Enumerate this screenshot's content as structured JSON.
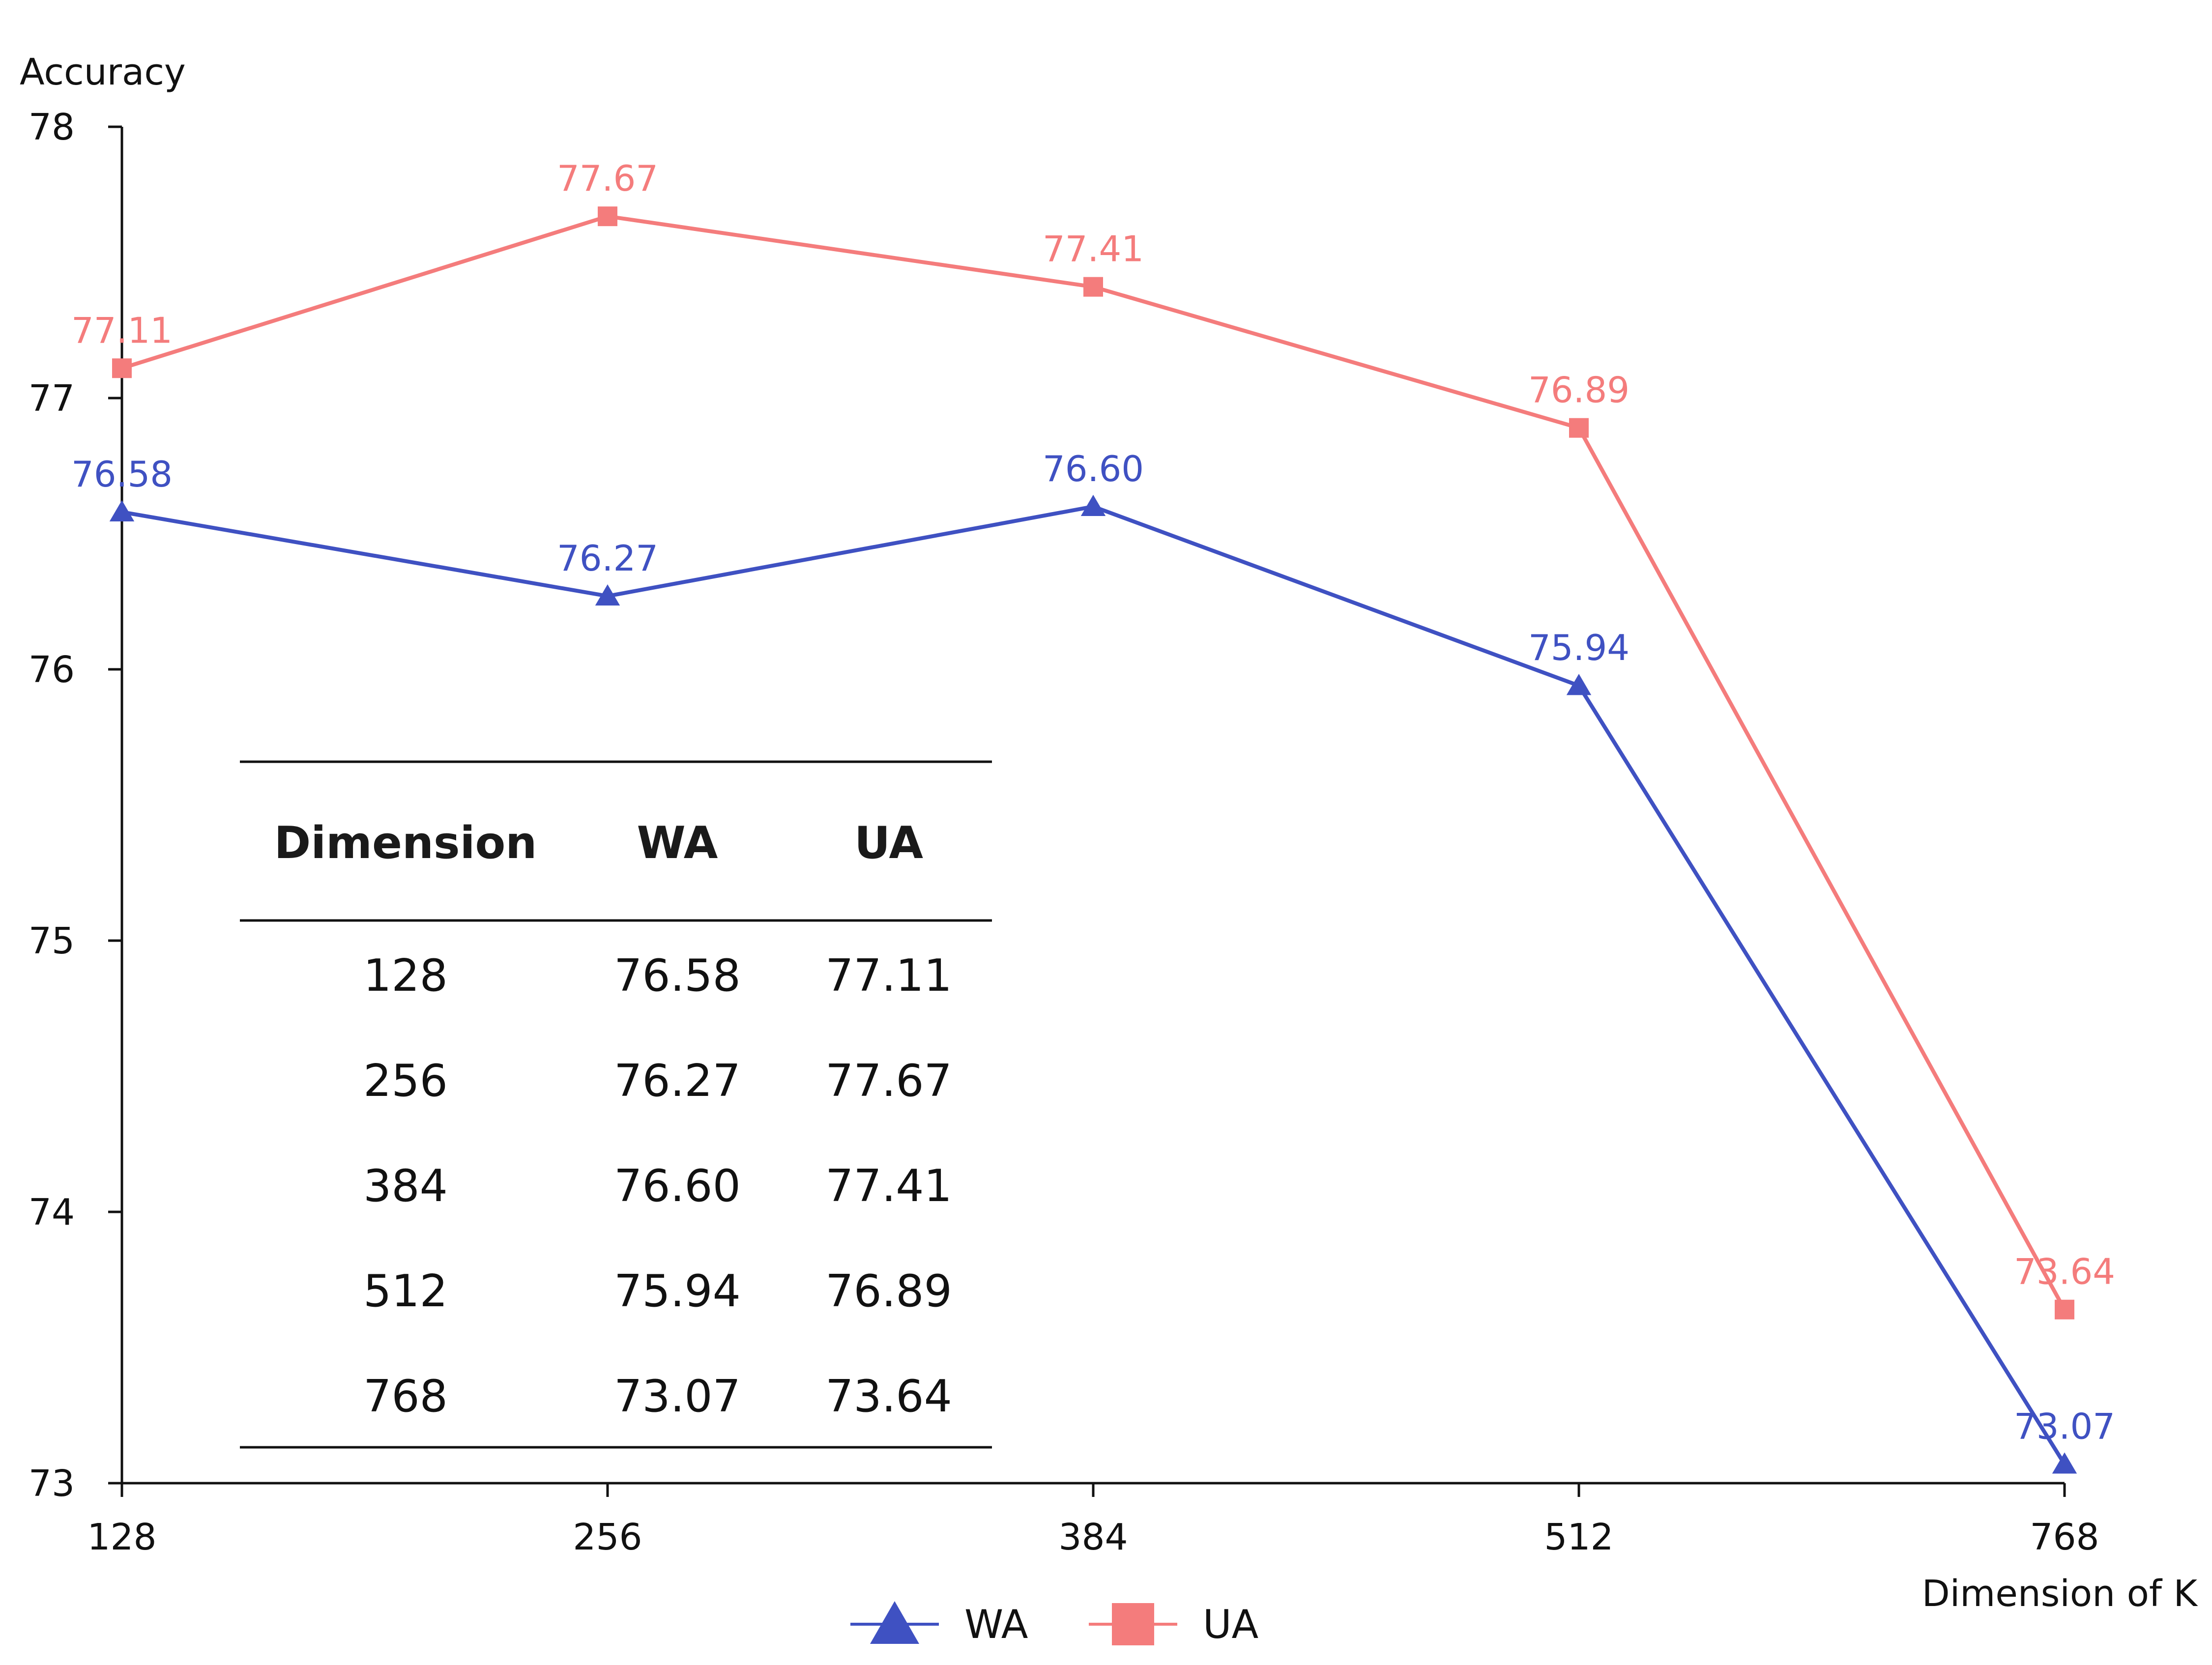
{
  "chart_data": {
    "type": "line",
    "xlabel": "Dimension of K",
    "ylabel": "Accuracy",
    "categories": [
      "128",
      "256",
      "384",
      "512",
      "768"
    ],
    "ylim": [
      73,
      78
    ],
    "yticks": [
      "73",
      "74",
      "75",
      "76",
      "77",
      "78"
    ],
    "grid": false,
    "legend_position": "bottom",
    "series": [
      {
        "name": "WA",
        "color": "#3F51C2",
        "marker": "triangle",
        "values": [
          76.58,
          76.27,
          76.6,
          75.94,
          73.07
        ],
        "labels": [
          "76.58",
          "76.27",
          "76.60",
          "75.94",
          "73.07"
        ]
      },
      {
        "name": "UA",
        "color": "#F47C7C",
        "marker": "square",
        "values": [
          77.11,
          77.67,
          77.41,
          76.89,
          73.64
        ],
        "labels": [
          "77.11",
          "77.67",
          "77.41",
          "76.89",
          "73.64"
        ]
      }
    ],
    "table": {
      "headers": [
        "Dimension",
        "WA",
        "UA"
      ],
      "rows": [
        [
          "128",
          "76.58",
          "77.11"
        ],
        [
          "256",
          "76.27",
          "77.67"
        ],
        [
          "384",
          "76.60",
          "77.41"
        ],
        [
          "512",
          "75.94",
          "76.89"
        ],
        [
          "768",
          "73.07",
          "73.64"
        ]
      ]
    }
  }
}
